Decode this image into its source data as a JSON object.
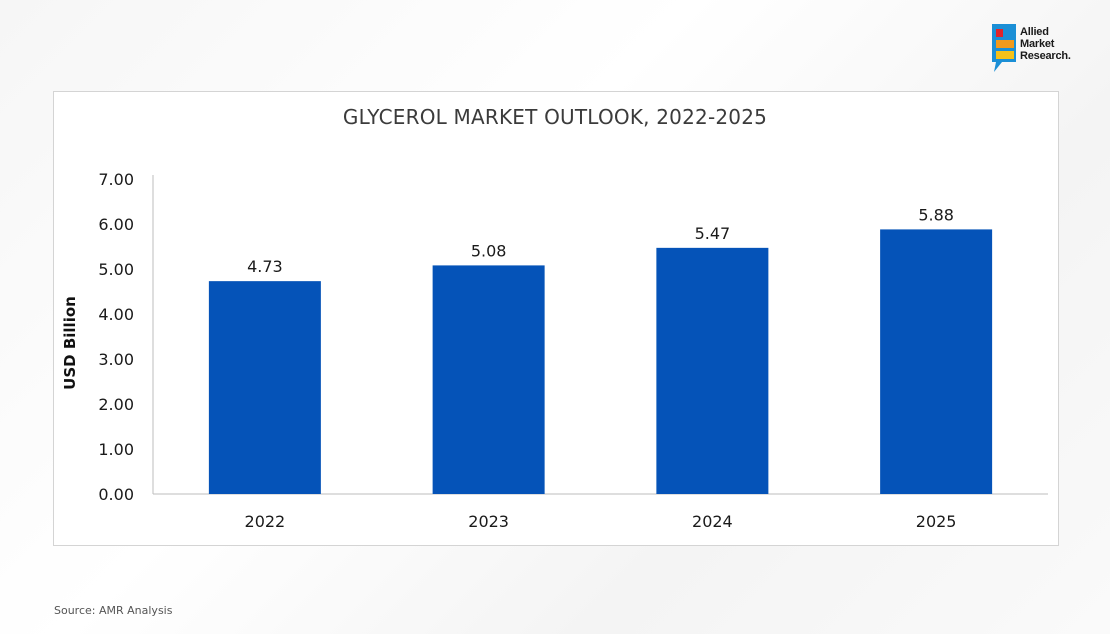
{
  "logo": {
    "line1": "Allied",
    "line2": "Market",
    "line3": "Research."
  },
  "source": "Source: AMR Analysis",
  "colors": {
    "bar": "#0553b8",
    "axis": "#bdbdbd",
    "text": "#1a1a1a"
  },
  "chart_data": {
    "type": "bar",
    "title": "GLYCEROL MARKET OUTLOOK, 2022-2025",
    "xlabel": "",
    "ylabel": "USD Billion",
    "categories": [
      "2022",
      "2023",
      "2024",
      "2025"
    ],
    "values": [
      4.73,
      5.08,
      5.47,
      5.88
    ],
    "value_labels": [
      "4.73",
      "5.08",
      "5.47",
      "5.88"
    ],
    "ylim": [
      0,
      7
    ],
    "yticks": [
      "0.00",
      "1.00",
      "2.00",
      "3.00",
      "4.00",
      "5.00",
      "6.00",
      "7.00"
    ],
    "grid": false,
    "legend": "none"
  }
}
